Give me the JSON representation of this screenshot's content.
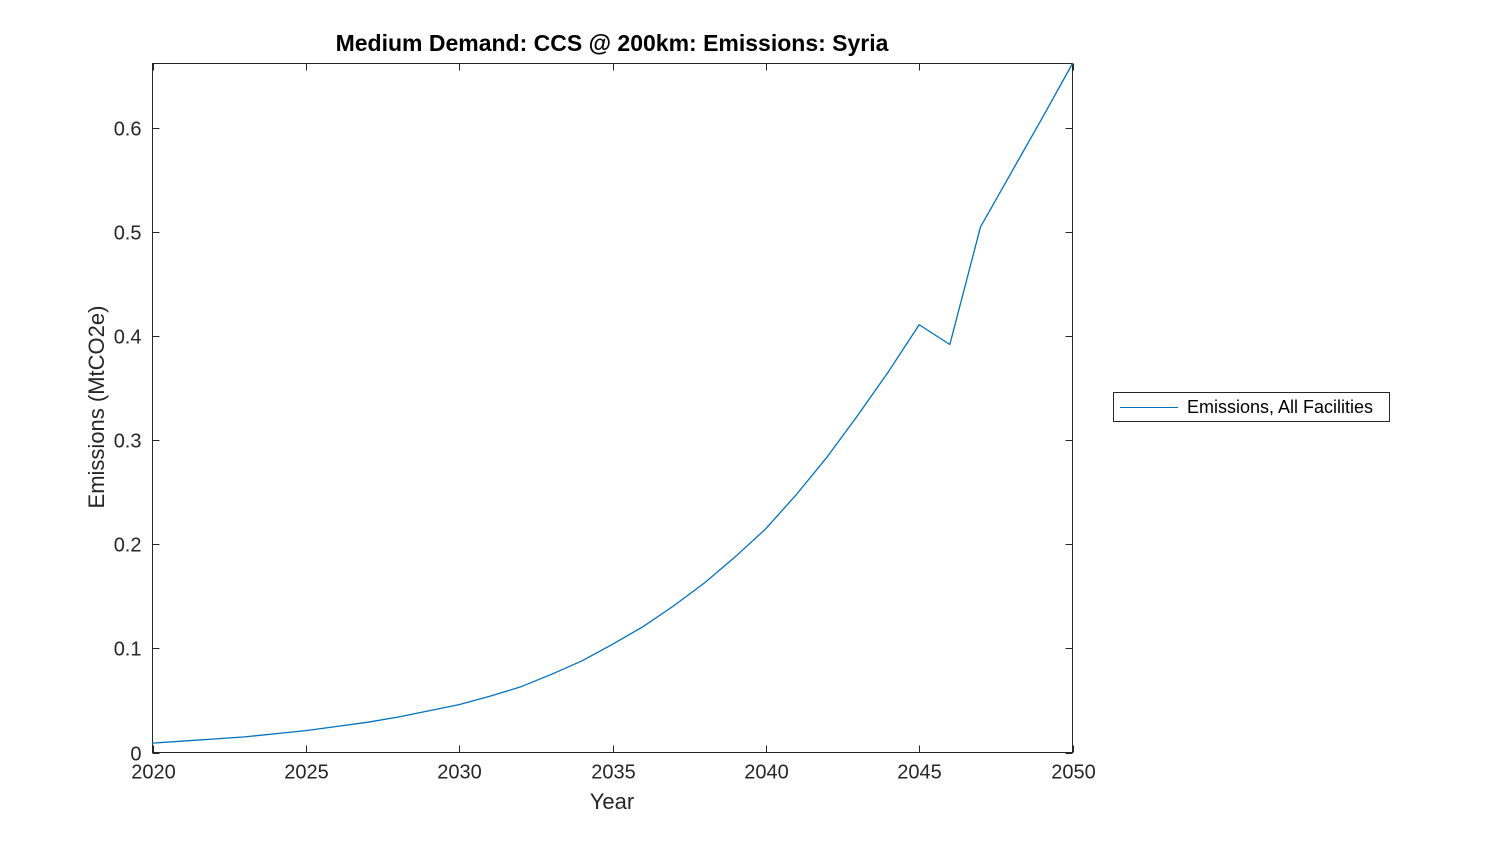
{
  "figure": {
    "background_color": "#ffffff",
    "axis_color": "#262626",
    "line_color": "#0072BD"
  },
  "chart_data": {
    "type": "line",
    "title": "Medium Demand: CCS @ 200km: Emissions: Syria",
    "xlabel": "Year",
    "ylabel": "Emissions (MtCO2e)",
    "xlim": [
      2020,
      2050
    ],
    "ylim": [
      0,
      0.662
    ],
    "xticks": [
      2020,
      2025,
      2030,
      2035,
      2040,
      2045,
      2050
    ],
    "yticks": [
      0,
      0.1,
      0.2,
      0.3,
      0.4,
      0.5,
      0.6
    ],
    "grid": false,
    "box": true,
    "legend": {
      "position": "outside-right",
      "entries": [
        {
          "label": "Emissions, All Facilities",
          "color": "#0072BD"
        }
      ]
    },
    "series": [
      {
        "name": "Emissions, All Facilities",
        "color": "#0072BD",
        "x": [
          2020,
          2021,
          2022,
          2023,
          2024,
          2025,
          2026,
          2027,
          2028,
          2029,
          2030,
          2031,
          2032,
          2033,
          2034,
          2035,
          2036,
          2037,
          2038,
          2039,
          2040,
          2041,
          2042,
          2043,
          2044,
          2045,
          2046,
          2047,
          2048,
          2049,
          2050
        ],
        "values": [
          0.009,
          0.011,
          0.013,
          0.015,
          0.018,
          0.021,
          0.025,
          0.029,
          0.034,
          0.04,
          0.046,
          0.054,
          0.063,
          0.075,
          0.088,
          0.104,
          0.121,
          0.141,
          0.163,
          0.188,
          0.215,
          0.248,
          0.284,
          0.324,
          0.366,
          0.411,
          0.392,
          0.505,
          0.557,
          0.609,
          0.662
        ]
      }
    ]
  }
}
